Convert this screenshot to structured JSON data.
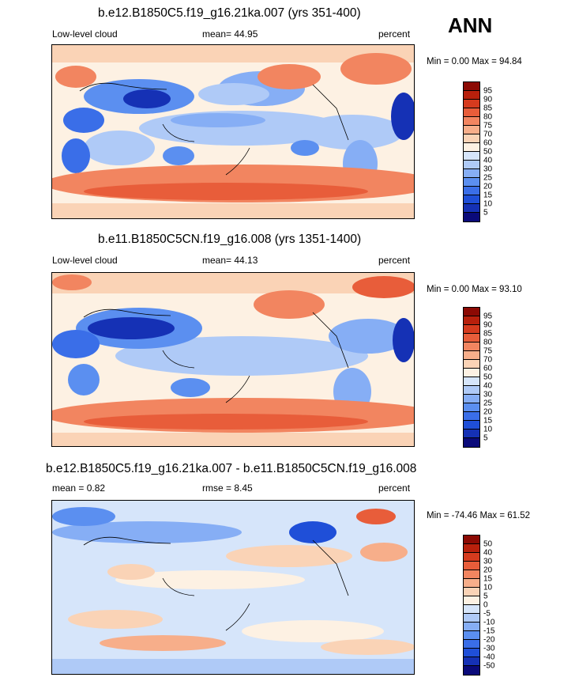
{
  "season": "ANN",
  "palette_cloud": [
    "#0a0a7a",
    "#1531b5",
    "#1f4fd8",
    "#3a6ee8",
    "#5b8ff0",
    "#86aef5",
    "#afcaf7",
    "#d6e5fa",
    "#fdf1e3",
    "#fad3b6",
    "#f7ae8a",
    "#f28560",
    "#e85d3a",
    "#d63b1e",
    "#b8200c",
    "#8c0a04"
  ],
  "palette_diff": [
    "#0a0a7a",
    "#1531b5",
    "#1f4fd8",
    "#3a6ee8",
    "#5b8ff0",
    "#86aef5",
    "#afcaf7",
    "#d6e5fa",
    "#fdf1e3",
    "#fad3b6",
    "#f7ae8a",
    "#f28560",
    "#e85d3a",
    "#d63b1e",
    "#b8200c",
    "#8c0a04"
  ],
  "panels": [
    {
      "title": "b.e12.B1850C5.f19_g16.21ka.007 (yrs 351-400)",
      "variable": "Low-level cloud",
      "stat": "mean=  44.95",
      "units": "percent",
      "minmax": "Min =   0.00 Max =  94.84",
      "levels": [
        "95",
        "90",
        "85",
        "80",
        "75",
        "70",
        "60",
        "50",
        "40",
        "30",
        "25",
        "20",
        "15",
        "10",
        "5"
      ]
    },
    {
      "title": "b.e11.B1850C5CN.f19_g16.008 (yrs 1351-1400)",
      "variable": "Low-level cloud",
      "stat": "mean=  44.13",
      "units": "percent",
      "minmax": "Min =   0.00 Max =  93.10",
      "levels": [
        "95",
        "90",
        "85",
        "80",
        "75",
        "70",
        "60",
        "50",
        "40",
        "30",
        "25",
        "20",
        "15",
        "10",
        "5"
      ]
    },
    {
      "title": "b.e12.B1850C5.f19_g16.21ka.007 - b.e11.B1850C5CN.f19_g16.008",
      "variable": "mean =   0.82",
      "stat": "rmse =   8.45",
      "units": "percent",
      "minmax": "Min = -74.46 Max =  61.52",
      "levels": [
        "50",
        "40",
        "30",
        "20",
        "15",
        "10",
        "5",
        "0",
        "-5",
        "-10",
        "-15",
        "-20",
        "-30",
        "-40",
        "-50"
      ]
    }
  ]
}
